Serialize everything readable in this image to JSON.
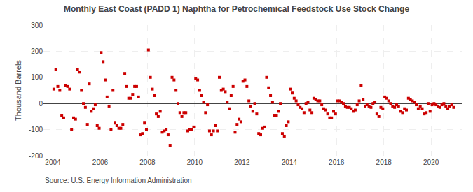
{
  "chart_data": {
    "type": "scatter",
    "title": "Monthly East Coast (PADD 1) Naphtha for Petrochemical Feedstock Use Stock Change",
    "ylabel": "Thousand Barrels",
    "annotations": [
      "Source: U.S. Energy Information Administration"
    ],
    "color": "#cc0000",
    "marker": "square",
    "grid": true,
    "xlim": [
      2003.6,
      2021.3
    ],
    "ylim": [
      -200,
      300
    ],
    "xticks": [
      2004,
      2006,
      2008,
      2010,
      2012,
      2014,
      2016,
      2018,
      2020
    ],
    "yticks": [
      -200,
      -100,
      0,
      100,
      200,
      300
    ],
    "x": [
      2004.0417,
      2004.125,
      2004.2083,
      2004.2917,
      2004.375,
      2004.4583,
      2004.5417,
      2004.625,
      2004.7083,
      2004.7917,
      2004.875,
      2004.9583,
      2005.0417,
      2005.125,
      2005.2083,
      2005.2917,
      2005.375,
      2005.4583,
      2005.5417,
      2005.625,
      2005.7083,
      2005.7917,
      2005.875,
      2005.9583,
      2006.0417,
      2006.125,
      2006.2083,
      2006.2917,
      2006.375,
      2006.4583,
      2006.5417,
      2006.625,
      2006.7083,
      2006.7917,
      2006.875,
      2006.9583,
      2007.0417,
      2007.125,
      2007.2083,
      2007.2917,
      2007.375,
      2007.4583,
      2007.5417,
      2007.625,
      2007.7083,
      2007.7917,
      2007.875,
      2007.9583,
      2008.0417,
      2008.125,
      2008.2083,
      2008.2917,
      2008.375,
      2008.4583,
      2008.5417,
      2008.625,
      2008.7083,
      2008.7917,
      2008.875,
      2008.9583,
      2009.0417,
      2009.125,
      2009.2083,
      2009.2917,
      2009.375,
      2009.4583,
      2009.5417,
      2009.625,
      2009.7083,
      2009.7917,
      2009.875,
      2009.9583,
      2010.0417,
      2010.125,
      2010.2083,
      2010.2917,
      2010.375,
      2010.4583,
      2010.5417,
      2010.625,
      2010.7083,
      2010.7917,
      2010.875,
      2010.9583,
      2011.0417,
      2011.125,
      2011.2083,
      2011.2917,
      2011.375,
      2011.4583,
      2011.5417,
      2011.625,
      2011.7083,
      2011.7917,
      2011.875,
      2011.9583,
      2012.0417,
      2012.125,
      2012.2083,
      2012.2917,
      2012.375,
      2012.4583,
      2012.5417,
      2012.625,
      2012.7083,
      2012.7917,
      2012.875,
      2012.9583,
      2013.0417,
      2013.125,
      2013.2083,
      2013.2917,
      2013.375,
      2013.4583,
      2013.5417,
      2013.625,
      2013.7083,
      2013.7917,
      2013.875,
      2013.9583,
      2014.0417,
      2014.125,
      2014.2083,
      2014.2917,
      2014.375,
      2014.4583,
      2014.5417,
      2014.625,
      2014.7083,
      2014.7917,
      2014.875,
      2014.9583,
      2015.0417,
      2015.125,
      2015.2083,
      2015.2917,
      2015.375,
      2015.4583,
      2015.5417,
      2015.625,
      2015.7083,
      2015.7917,
      2015.875,
      2015.9583,
      2016.0417,
      2016.125,
      2016.2083,
      2016.2917,
      2016.375,
      2016.4583,
      2016.5417,
      2016.625,
      2016.7083,
      2016.7917,
      2016.875,
      2016.9583,
      2017.0417,
      2017.125,
      2017.2083,
      2017.2917,
      2017.375,
      2017.4583,
      2017.5417,
      2017.625,
      2017.7083,
      2017.7917,
      2017.875,
      2017.9583,
      2018.0417,
      2018.125,
      2018.2083,
      2018.2917,
      2018.375,
      2018.4583,
      2018.5417,
      2018.625,
      2018.7083,
      2018.7917,
      2018.875,
      2018.9583,
      2019.0417,
      2019.125,
      2019.2083,
      2019.2917,
      2019.375,
      2019.4583,
      2019.5417,
      2019.625,
      2019.7083,
      2019.7917,
      2019.875,
      2019.9583,
      2020.0417,
      2020.125,
      2020.2083,
      2020.2917,
      2020.375,
      2020.4583,
      2020.5417,
      2020.625,
      2020.7083,
      2020.7917,
      2020.875,
      2020.9583
    ],
    "values": [
      55,
      130,
      65,
      50,
      -45,
      -55,
      70,
      65,
      55,
      -100,
      -55,
      -60,
      130,
      120,
      50,
      0,
      -15,
      -80,
      75,
      -30,
      -20,
      -5,
      -85,
      -95,
      195,
      160,
      90,
      25,
      -10,
      -100,
      50,
      -75,
      -85,
      -95,
      -95,
      -80,
      115,
      65,
      20,
      20,
      35,
      65,
      65,
      25,
      -120,
      -115,
      -75,
      -100,
      205,
      100,
      55,
      30,
      -40,
      -50,
      -30,
      -110,
      -105,
      -100,
      -120,
      -160,
      100,
      90,
      50,
      0,
      -35,
      -50,
      -35,
      -35,
      -105,
      -100,
      -100,
      -90,
      95,
      90,
      50,
      30,
      5,
      -35,
      -5,
      -105,
      -120,
      -105,
      -85,
      -105,
      100,
      50,
      55,
      45,
      5,
      -20,
      30,
      65,
      -110,
      -80,
      -60,
      -70,
      85,
      90,
      65,
      10,
      -10,
      -30,
      0,
      -40,
      -115,
      -120,
      -95,
      -90,
      100,
      60,
      30,
      5,
      -45,
      -45,
      -30,
      0,
      -115,
      -125,
      -85,
      -70,
      55,
      40,
      20,
      10,
      -5,
      -15,
      -20,
      -35,
      0,
      5,
      -25,
      -35,
      20,
      15,
      10,
      10,
      -5,
      -20,
      -25,
      -40,
      -55,
      -55,
      -30,
      -40,
      10,
      10,
      5,
      0,
      -10,
      -15,
      -15,
      -20,
      -30,
      -25,
      -5,
      10,
      70,
      15,
      -10,
      -5,
      -10,
      -15,
      0,
      5,
      -40,
      -50,
      -15,
      -20,
      25,
      20,
      10,
      0,
      -10,
      -15,
      -5,
      -10,
      -30,
      -35,
      -20,
      -25,
      20,
      15,
      10,
      5,
      -5,
      -20,
      -10,
      -20,
      -40,
      -35,
      0,
      -30,
      -5,
      0,
      -5,
      -10,
      -15,
      -5,
      0,
      -10,
      -20,
      -10,
      -5,
      -15
    ]
  }
}
